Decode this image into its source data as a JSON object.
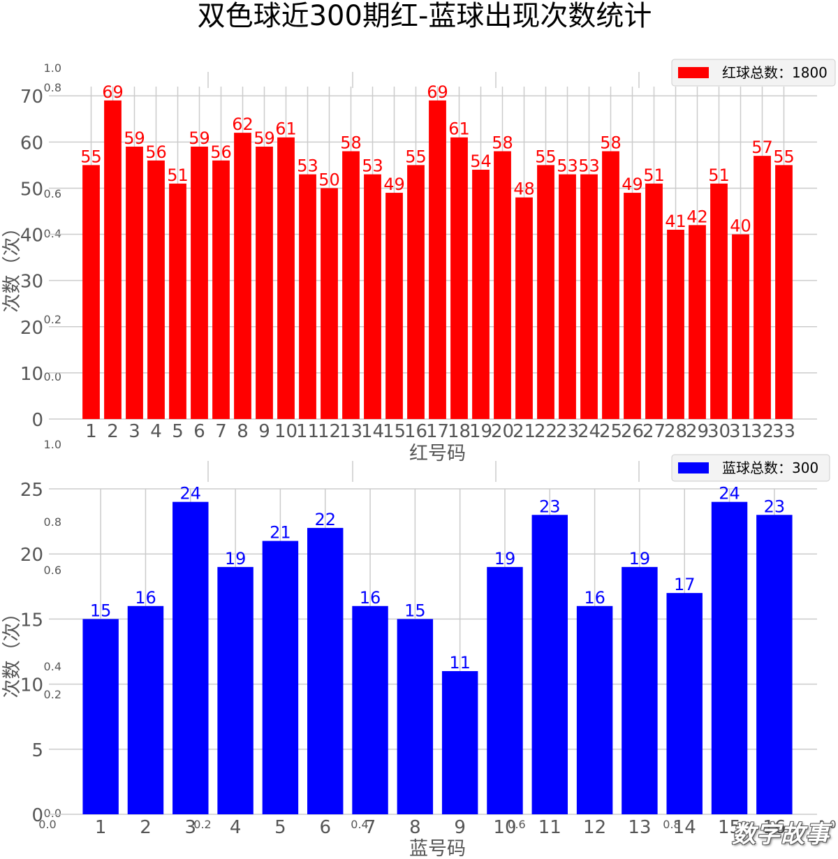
{
  "page_title": "双色球近300期红-蓝球出现次数统计",
  "watermark": "数字故事",
  "phantom_axes": {
    "top_left_labels": [
      "1.0",
      "0.8",
      "0.6",
      "0.4",
      "0.2",
      "0.0"
    ],
    "bottom_left_labels": [
      "1.0",
      "0.8",
      "0.6",
      "0.4",
      "0.2",
      "0.0"
    ],
    "bottom_x_labels": [
      "0.0",
      "0.2",
      "0.4",
      "0.6",
      "0.8",
      "1.0"
    ]
  },
  "colors": {
    "red": "#ff0000",
    "blue": "#0000ff",
    "grid": "#cbcbcb",
    "text": "#555555"
  },
  "chart_data": [
    {
      "type": "bar",
      "title": "",
      "xlabel": "红号码",
      "ylabel": "次数（次）",
      "legend": "红球总数：1800",
      "legend_position": "top-right",
      "color": "#ff0000",
      "grid": true,
      "ylim": [
        0,
        72
      ],
      "yticks": [
        0,
        10,
        20,
        30,
        40,
        50,
        60,
        70
      ],
      "categories": [
        "1",
        "2",
        "3",
        "4",
        "5",
        "6",
        "7",
        "8",
        "9",
        "10",
        "11",
        "12",
        "13",
        "14",
        "15",
        "16",
        "17",
        "18",
        "19",
        "20",
        "21",
        "22",
        "23",
        "24",
        "25",
        "26",
        "27",
        "28",
        "29",
        "30",
        "31",
        "32",
        "33"
      ],
      "values": [
        55,
        69,
        59,
        56,
        51,
        59,
        56,
        62,
        59,
        61,
        53,
        50,
        58,
        53,
        49,
        55,
        69,
        61,
        54,
        58,
        48,
        55,
        53,
        53,
        58,
        49,
        51,
        41,
        42,
        51,
        40,
        57,
        55
      ]
    },
    {
      "type": "bar",
      "title": "",
      "xlabel": "蓝号码",
      "ylabel": "次数（次）",
      "legend": "蓝球总数：300",
      "legend_position": "top-right",
      "color": "#0000ff",
      "grid": true,
      "ylim": [
        0,
        25
      ],
      "yticks": [
        0,
        5,
        10,
        15,
        20,
        25
      ],
      "categories": [
        "1",
        "2",
        "3",
        "4",
        "5",
        "6",
        "7",
        "8",
        "9",
        "10",
        "11",
        "12",
        "13",
        "14",
        "15",
        "16"
      ],
      "values": [
        15,
        16,
        24,
        19,
        21,
        22,
        16,
        15,
        11,
        19,
        23,
        16,
        19,
        17,
        24,
        23
      ]
    }
  ]
}
